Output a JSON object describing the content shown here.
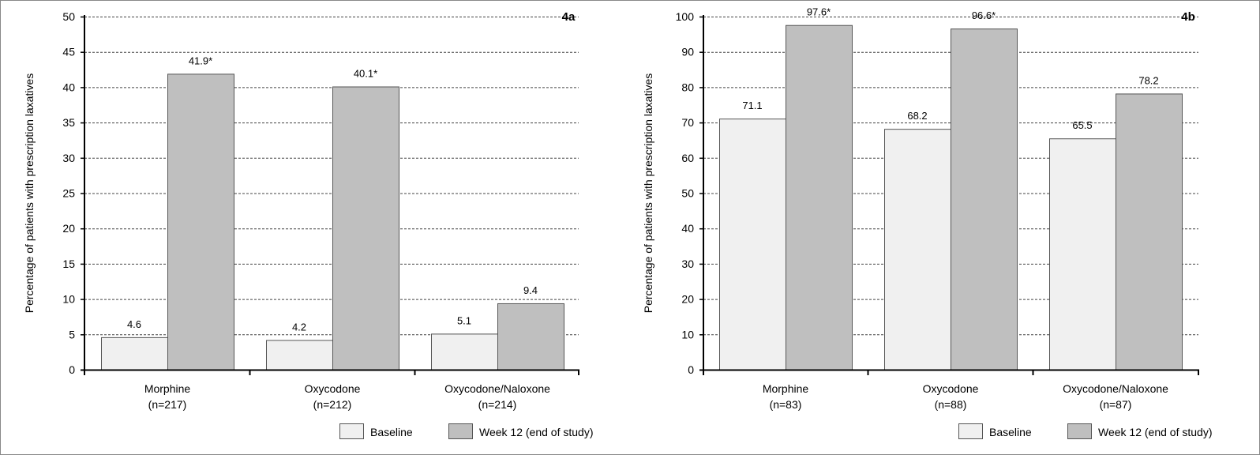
{
  "colors": {
    "baseline": "#f0f0f0",
    "week12": "#bfbfbf",
    "outline": "#555555",
    "grid": "#444444"
  },
  "legend": {
    "baseline": "Baseline",
    "week12": "Week 12 (end of study)"
  },
  "chart_data": [
    {
      "type": "bar",
      "panel_label": "4a",
      "ylabel": "Percentage of patients with prescription laxatives",
      "xlabel": "",
      "ylim": [
        0,
        50
      ],
      "yticks": [
        0,
        5,
        10,
        15,
        20,
        25,
        30,
        35,
        40,
        45,
        50
      ],
      "grid": true,
      "legend_position": "bottom-right",
      "categories": [
        "Morphine",
        "Oxycodone",
        "Oxycodone/Naloxone"
      ],
      "category_n": [
        "(n=217)",
        "(n=212)",
        "(n=214)"
      ],
      "series": [
        {
          "name": "Baseline",
          "values": [
            4.6,
            4.2,
            5.1
          ],
          "labels": [
            "4.6",
            "4.2",
            "5.1"
          ]
        },
        {
          "name": "Week 12 (end of study)",
          "values": [
            41.9,
            40.1,
            9.4
          ],
          "labels": [
            "41.9*",
            "40.1*",
            "9.4"
          ]
        }
      ]
    },
    {
      "type": "bar",
      "panel_label": "4b",
      "ylabel": "Percentage of patients with prescription laxatives",
      "xlabel": "",
      "ylim": [
        0,
        100
      ],
      "yticks": [
        0,
        10,
        20,
        30,
        40,
        50,
        60,
        70,
        80,
        90,
        100
      ],
      "grid": true,
      "legend_position": "bottom-right",
      "categories": [
        "Morphine",
        "Oxycodone",
        "Oxycodone/Naloxone"
      ],
      "category_n": [
        "(n=83)",
        "(n=88)",
        "(n=87)"
      ],
      "series": [
        {
          "name": "Baseline",
          "values": [
            71.1,
            68.2,
            65.5
          ],
          "labels": [
            "71.1",
            "68.2",
            "65.5"
          ]
        },
        {
          "name": "Week 12 (end of study)",
          "values": [
            97.6,
            96.6,
            78.2
          ],
          "labels": [
            "97.6*",
            "96.6*",
            "78.2"
          ]
        }
      ]
    }
  ]
}
